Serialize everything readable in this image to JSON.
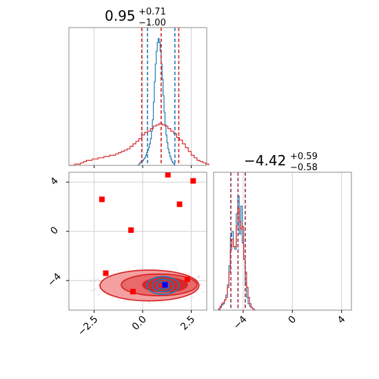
{
  "chart_data": [
    {
      "type": "histogram",
      "panel": "top-left",
      "title": {
        "value": "0.95",
        "upper": "+0.71",
        "lower": "−1.00"
      },
      "xlim": [
        -3.8,
        3.3
      ],
      "grid": true,
      "x_ticks": [
        -2.5,
        0.0,
        2.5
      ],
      "series": [
        {
          "color": "#1f77b4",
          "quantile_lines": [
            0.95,
            0.25,
            1.66
          ],
          "bins_x0": -0.3,
          "bin_width": 0.05,
          "heights": [
            0,
            0,
            0.01,
            0.02,
            0.03,
            0.03,
            0.04,
            0.05,
            0.06,
            0.08,
            0.1,
            0.12,
            0.14,
            0.17,
            0.21,
            0.27,
            0.36,
            0.5,
            0.66,
            0.8,
            0.9,
            0.97,
            1.0,
            0.97,
            0.9,
            0.8,
            0.68,
            0.55,
            0.42,
            0.32,
            0.24,
            0.18,
            0.13,
            0.1,
            0.07,
            0.05,
            0.03,
            0.02,
            0.01,
            0
          ]
        },
        {
          "color": "#d62728",
          "quantile_lines": [
            0.95,
            -0.05,
            1.86
          ],
          "bins_x0": -3.8,
          "bin_width": 0.15,
          "heights": [
            0,
            0,
            0.01,
            0.01,
            0.02,
            0.03,
            0.04,
            0.04,
            0.05,
            0.05,
            0.06,
            0.06,
            0.07,
            0.07,
            0.08,
            0.08,
            0.09,
            0.1,
            0.11,
            0.12,
            0.13,
            0.15,
            0.17,
            0.19,
            0.21,
            0.24,
            0.26,
            0.27,
            0.29,
            0.31,
            0.32,
            0.33,
            0.32,
            0.31,
            0.29,
            0.27,
            0.25,
            0.22,
            0.2,
            0.17,
            0.14,
            0.11,
            0.08,
            0.06,
            0.04,
            0.03,
            0.02,
            0.01
          ]
        }
      ]
    },
    {
      "type": "histogram",
      "panel": "bottom-right",
      "title": {
        "value": "−4.42",
        "upper": "+0.59",
        "lower": "−0.58"
      },
      "xlim": [
        -6.4,
        4.8
      ],
      "grid": true,
      "x_ticks": [
        -4,
        0,
        4
      ],
      "series": [
        {
          "color": "#1f77b4",
          "quantile_lines": [
            -4.42,
            -5.0,
            -3.83
          ],
          "bins_x0": -6.0,
          "bin_width": 0.12,
          "heights": [
            0,
            0.02,
            0.04,
            0.05,
            0.08,
            0.12,
            0.2,
            0.35,
            0.58,
            0.62,
            0.5,
            0.48,
            0.76,
            0.9,
            0.6,
            0.82,
            0.53,
            0.4,
            0.22,
            0.1,
            0.05,
            0.03,
            0.02,
            0.01,
            0
          ]
        },
        {
          "color": "#d62728",
          "quantile_lines": [
            -4.42,
            -5.0,
            -3.83
          ],
          "bins_x0": -6.0,
          "bin_width": 0.12,
          "heights": [
            0.01,
            0.03,
            0.05,
            0.06,
            0.08,
            0.1,
            0.18,
            0.3,
            0.48,
            0.56,
            0.5,
            0.5,
            0.66,
            0.8,
            0.7,
            0.64,
            0.66,
            0.4,
            0.3,
            0.18,
            0.1,
            0.05,
            0.02,
            0.01,
            0
          ]
        }
      ]
    },
    {
      "type": "scatter",
      "panel": "bottom-left",
      "xlim": [
        -3.8,
        3.3
      ],
      "ylim": [
        -6.4,
        4.8
      ],
      "grid": true,
      "x_ticks": [
        -2.5,
        0.0,
        2.5
      ],
      "y_ticks": [
        -4,
        0,
        4
      ],
      "red_markers": [
        {
          "x": -2.1,
          "y": 2.6
        },
        {
          "x": 1.3,
          "y": 4.6
        },
        {
          "x": 2.6,
          "y": 4.1
        },
        {
          "x": 1.9,
          "y": 2.2
        },
        {
          "x": -0.6,
          "y": 0.1
        },
        {
          "x": -1.9,
          "y": -3.4
        },
        {
          "x": -0.5,
          "y": -4.9
        },
        {
          "x": 2.3,
          "y": -3.9
        }
      ],
      "blue_marker": {
        "x": 1.15,
        "y": -4.35
      },
      "contours": [
        {
          "color": "#d62728",
          "cx": 0.35,
          "cy": -4.4,
          "rx": 2.55,
          "ry": 1.25,
          "fill": "#f4a0a0"
        },
        {
          "color": "#d62728",
          "cx": 0.85,
          "cy": -4.35,
          "rx": 1.95,
          "ry": 0.88,
          "fill": "#e86a6a"
        },
        {
          "color": "#d62728",
          "cx": 1.15,
          "cy": -4.35,
          "rx": 1.15,
          "ry": 0.58,
          "fill": "#d62728"
        },
        {
          "color": "#1f77b4",
          "cx": 1.05,
          "cy": -4.4,
          "rx": 0.82,
          "ry": 0.72,
          "fill": "none"
        },
        {
          "color": "#1f77b4",
          "cx": 1.05,
          "cy": -4.4,
          "rx": 0.55,
          "ry": 0.5,
          "fill": "none"
        },
        {
          "color": "#1f77b4",
          "cx": 1.05,
          "cy": -4.4,
          "rx": 0.32,
          "ry": 0.3,
          "fill": "none"
        }
      ]
    }
  ]
}
